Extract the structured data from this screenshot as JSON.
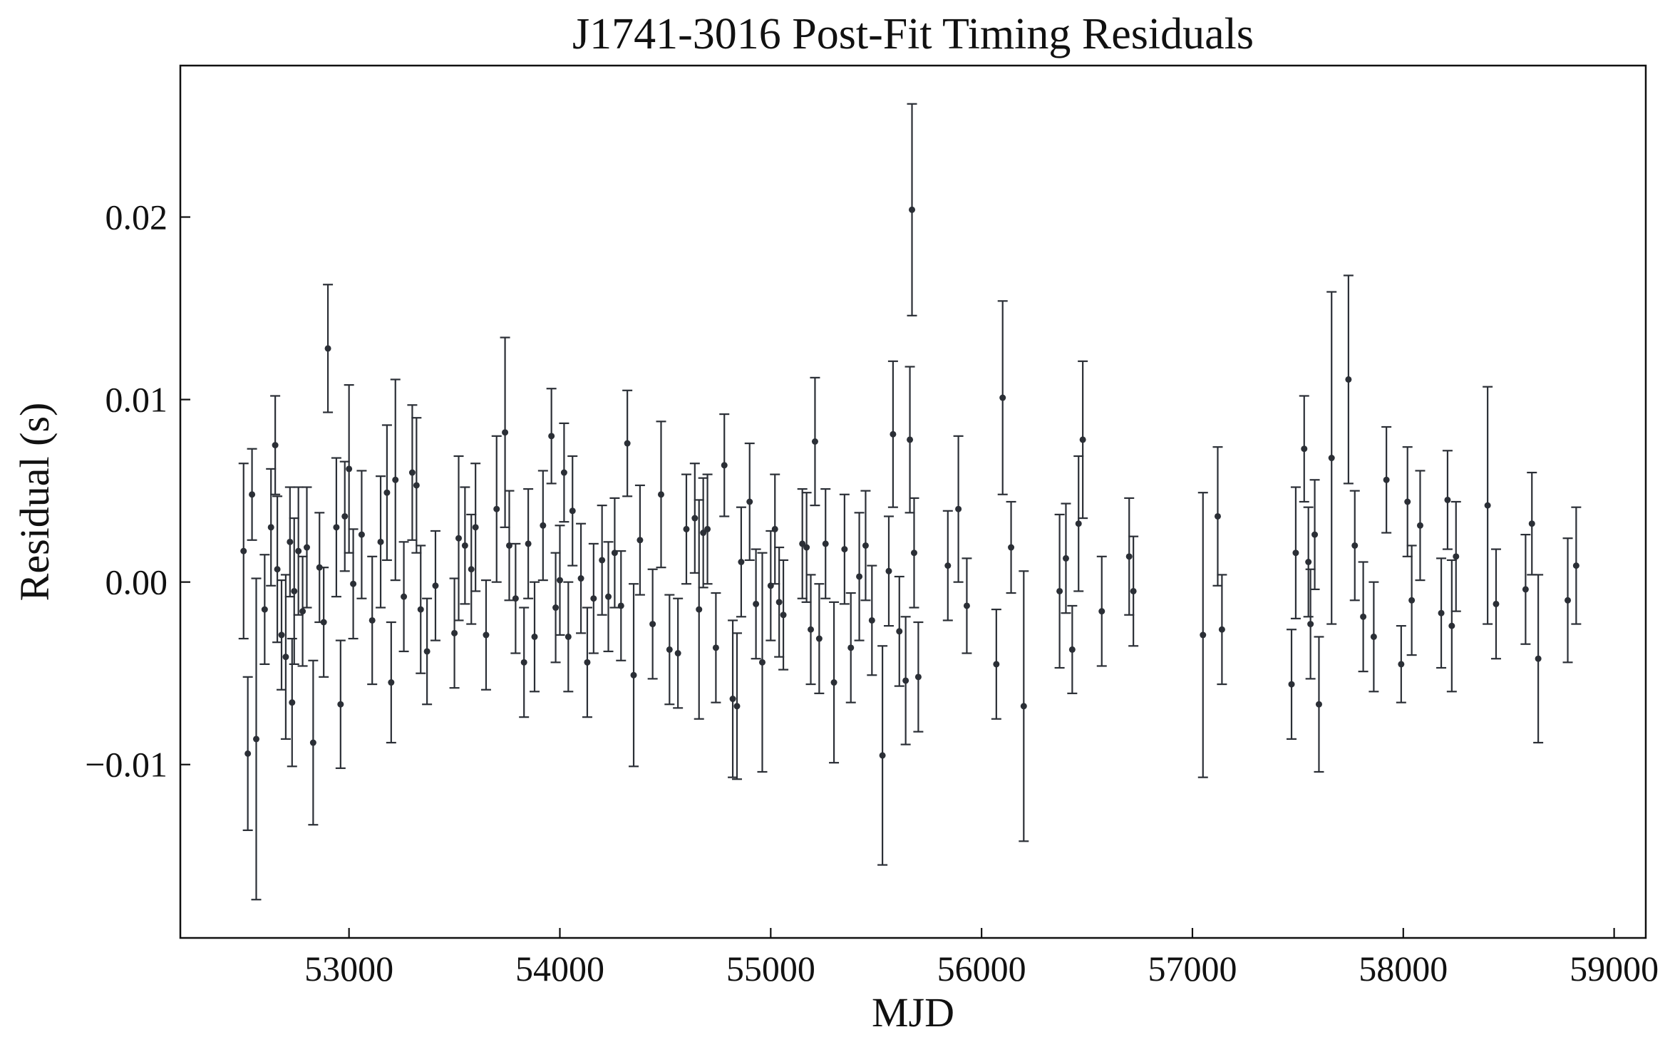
{
  "chart_data": {
    "type": "scatter",
    "title": "J1741-3016 Post-Fit Timing Residuals",
    "xlabel": "MJD",
    "ylabel": "Residual (s)",
    "xlim": [
      52200,
      59150
    ],
    "ylim": [
      -0.0195,
      0.0283
    ],
    "x_ticks": [
      53000,
      54000,
      55000,
      56000,
      57000,
      58000,
      59000
    ],
    "x_tick_labels": [
      "53000",
      "54000",
      "55000",
      "56000",
      "57000",
      "58000",
      "59000"
    ],
    "y_ticks": [
      -0.01,
      0.0,
      0.01,
      0.02
    ],
    "y_tick_labels": [
      "−0.01",
      "0.00",
      "0.01",
      "0.02"
    ],
    "grid": false,
    "legend": "none",
    "colors": {
      "marker": "#2b2f36",
      "axes": "#111111",
      "background": "#ffffff"
    },
    "series": [
      {
        "x": [
          52500,
          52520,
          52540,
          52560,
          52600,
          52630,
          52650,
          52660,
          52680,
          52700,
          52720,
          52730,
          52740,
          52760,
          52780,
          52800,
          52830,
          52860,
          52880,
          52900,
          52940,
          52960,
          52980,
          53000,
          53020,
          53060,
          53110,
          53150,
          53180,
          53200,
          53220,
          53260,
          53300,
          53320,
          53340,
          53370,
          53410,
          53500,
          53520,
          53550,
          53580,
          53600,
          53650,
          53700,
          53740,
          53760,
          53790,
          53830,
          53850,
          53880,
          53920,
          53960,
          53980,
          54000,
          54020,
          54040,
          54060,
          54100,
          54130,
          54160,
          54200,
          54230,
          54260,
          54290,
          54320,
          54350,
          54380,
          54440,
          54480,
          54520,
          54560,
          54600,
          54640,
          54660,
          54680,
          54700,
          54740,
          54780,
          54820,
          54840,
          54860,
          54900,
          54930,
          54960,
          55000,
          55020,
          55040,
          55060,
          55150,
          55170,
          55190,
          55210,
          55230,
          55260,
          55300,
          55350,
          55380,
          55420,
          55450,
          55480,
          55530,
          55560,
          55580,
          55610,
          55640,
          55660,
          55680,
          55700,
          55840,
          55890,
          55930,
          56070,
          56100,
          56140,
          56200,
          56370,
          56400,
          56430,
          56460,
          56480,
          56570,
          56700,
          56720,
          57050,
          57120,
          57140,
          57470,
          57490,
          57530,
          57550,
          57560,
          57580,
          57600,
          57660,
          57740,
          57770,
          57810,
          57860,
          57920,
          57990,
          58020,
          58040,
          58080,
          58180,
          58210,
          58230,
          58250,
          58400,
          58440,
          58580,
          58610,
          58640,
          58780,
          58820
        ],
        "y": [
          0.0017,
          -0.0094,
          0.0048,
          -0.0086,
          -0.0015,
          0.003,
          0.0075,
          0.0007,
          -0.0029,
          -0.0041,
          0.0022,
          -0.0066,
          -0.0005,
          0.0017,
          -0.0016,
          0.0019,
          -0.0088,
          0.0008,
          -0.0022,
          0.0128,
          0.003,
          -0.0067,
          0.0036,
          0.0062,
          -0.0001,
          0.0026,
          -0.0021,
          0.0022,
          0.0049,
          -0.0055,
          0.0056,
          -0.0008,
          0.006,
          0.0053,
          -0.0015,
          -0.0038,
          -0.0002,
          -0.0028,
          0.0024,
          0.002,
          0.0007,
          0.003,
          -0.0029,
          0.004,
          0.0082,
          0.002,
          -0.0009,
          -0.0044,
          0.0021,
          -0.003,
          0.0031,
          0.008,
          -0.0014,
          0.0001,
          0.006,
          -0.003,
          0.0039,
          0.0002,
          -0.0044,
          -0.0009,
          0.0012,
          -0.0008,
          0.0016,
          -0.0013,
          0.0076,
          -0.0051,
          0.0023,
          -0.0023,
          0.0048,
          -0.0037,
          -0.0039,
          0.0029,
          0.0035,
          -0.0015,
          0.0027,
          0.0029,
          -0.0036,
          0.0064,
          -0.0064,
          -0.0068,
          0.0011,
          0.0044,
          -0.0012,
          -0.0044,
          -0.0002,
          0.0029,
          -0.0011,
          -0.0018,
          0.0021,
          0.0019,
          -0.0026,
          0.0077,
          -0.0031,
          0.0021,
          -0.0055,
          0.0018,
          -0.0036,
          0.0003,
          0.002,
          -0.0021,
          -0.0095,
          0.0006,
          0.0081,
          -0.0027,
          -0.0054,
          0.0078,
          0.0016,
          -0.0052,
          0.0009,
          0.004,
          -0.0013,
          -0.0045,
          0.0101,
          0.0019,
          -0.0068,
          -0.0005,
          0.0013,
          -0.0037,
          0.0032,
          0.0078,
          -0.0016,
          0.0014,
          -0.0005,
          -0.0029,
          0.0036,
          -0.0026,
          -0.0056,
          0.0016,
          0.0073,
          0.0011,
          -0.0023,
          0.0026,
          -0.0067,
          0.0068,
          0.0111,
          0.002,
          -0.0019,
          -0.003,
          0.0056,
          -0.0045,
          0.0044,
          -0.001,
          0.0031,
          -0.0017,
          0.0045,
          -0.0024,
          0.0014,
          0.0042,
          -0.0012,
          -0.0004,
          0.0032,
          -0.0042,
          -0.001,
          0.0009
        ],
        "yerr": [
          0.0048,
          0.0042,
          0.0025,
          0.0088,
          0.003,
          0.0032,
          0.0027,
          0.004,
          0.003,
          0.0045,
          0.003,
          0.0035,
          0.004,
          0.0035,
          0.003,
          0.0033,
          0.0045,
          0.003,
          0.003,
          0.0035,
          0.0038,
          0.0035,
          0.003,
          0.0046,
          0.003,
          0.0035,
          0.0035,
          0.0036,
          0.0037,
          0.0033,
          0.0055,
          0.003,
          0.0037,
          0.0037,
          0.0035,
          0.0029,
          0.003,
          0.003,
          0.0045,
          0.0032,
          0.003,
          0.0035,
          0.003,
          0.004,
          0.0052,
          0.003,
          0.003,
          0.003,
          0.003,
          0.003,
          0.003,
          0.0026,
          0.003,
          0.003,
          0.0027,
          0.003,
          0.003,
          0.003,
          0.003,
          0.003,
          0.003,
          0.003,
          0.003,
          0.003,
          0.0029,
          0.005,
          0.003,
          0.003,
          0.004,
          0.003,
          0.003,
          0.003,
          0.003,
          0.006,
          0.003,
          0.003,
          0.003,
          0.0028,
          0.0043,
          0.004,
          0.003,
          0.0032,
          0.003,
          0.006,
          0.003,
          0.003,
          0.003,
          0.003,
          0.003,
          0.003,
          0.003,
          0.0035,
          0.003,
          0.003,
          0.0044,
          0.003,
          0.003,
          0.0035,
          0.003,
          0.003,
          0.006,
          0.003,
          0.004,
          0.003,
          0.0035,
          0.004,
          0.003,
          0.003,
          0.003,
          0.004,
          0.0026,
          0.003,
          0.0053,
          0.0025,
          0.0074,
          0.0042,
          0.003,
          0.0024,
          0.0037,
          0.0043,
          0.003,
          0.0032,
          0.003,
          0.0078,
          0.0038,
          0.003,
          0.003,
          0.0036,
          0.0029,
          0.003,
          0.003,
          0.003,
          0.0037,
          0.0091,
          0.0057,
          0.003,
          0.003,
          0.003,
          0.0029,
          0.0021,
          0.003,
          0.003,
          0.003,
          0.003,
          0.0027,
          0.0036,
          0.003,
          0.0065,
          0.003,
          0.003,
          0.0028,
          0.0046,
          0.0034,
          0.0032
        ]
      },
      {
        "x": [
          55670
        ],
        "y": [
          0.0204
        ],
        "yerr": [
          0.0058
        ]
      }
    ]
  }
}
